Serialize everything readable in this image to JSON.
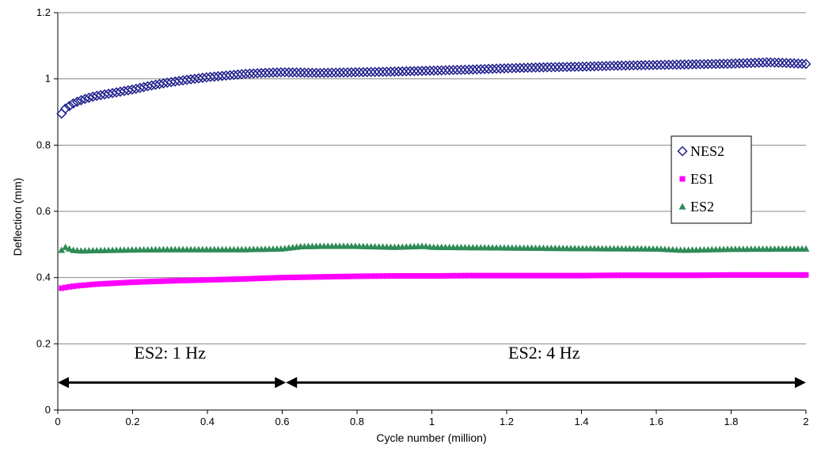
{
  "chart_data": {
    "type": "scatter",
    "xlabel": "Cycle number (million)",
    "ylabel": "Deflection (mm)",
    "xlim": [
      0,
      2
    ],
    "ylim": [
      0,
      1.2
    ],
    "x_ticks": [
      "0",
      "0.2",
      "0.4",
      "0.6",
      "0.8",
      "1",
      "1.2",
      "1.4",
      "1.6",
      "1.8",
      "2"
    ],
    "y_ticks": [
      "0",
      "0.2",
      "0.4",
      "0.6",
      "0.8",
      "1",
      "1.2"
    ],
    "grid": "horizontal",
    "legend_position": "right",
    "series": [
      {
        "name": "NES2",
        "marker": "diamond-open",
        "color": "#1F1F8C",
        "x": [
          0.01,
          0.02,
          0.04,
          0.06,
          0.08,
          0.1,
          0.15,
          0.2,
          0.25,
          0.3,
          0.35,
          0.4,
          0.45,
          0.5,
          0.55,
          0.6,
          0.7,
          0.8,
          0.9,
          1.0,
          1.1,
          1.2,
          1.3,
          1.4,
          1.5,
          1.6,
          1.7,
          1.8,
          1.9,
          1.95,
          2.0
        ],
        "y": [
          0.895,
          0.91,
          0.925,
          0.935,
          0.942,
          0.948,
          0.958,
          0.968,
          0.98,
          0.99,
          0.998,
          1.005,
          1.01,
          1.015,
          1.018,
          1.02,
          1.018,
          1.02,
          1.022,
          1.025,
          1.028,
          1.032,
          1.035,
          1.037,
          1.04,
          1.042,
          1.044,
          1.046,
          1.05,
          1.048,
          1.045
        ]
      },
      {
        "name": "ES1",
        "marker": "square",
        "color": "#FF00FF",
        "x": [
          0.01,
          0.03,
          0.05,
          0.1,
          0.15,
          0.2,
          0.3,
          0.4,
          0.5,
          0.6,
          0.7,
          0.8,
          0.9,
          1.0,
          1.1,
          1.2,
          1.3,
          1.4,
          1.5,
          1.6,
          1.7,
          1.8,
          1.9,
          2.0
        ],
        "y": [
          0.368,
          0.372,
          0.375,
          0.38,
          0.383,
          0.386,
          0.39,
          0.393,
          0.396,
          0.4,
          0.402,
          0.404,
          0.405,
          0.405,
          0.406,
          0.406,
          0.406,
          0.406,
          0.407,
          0.407,
          0.407,
          0.408,
          0.408,
          0.408
        ]
      },
      {
        "name": "ES2",
        "marker": "triangle",
        "color": "#2E8B57",
        "x": [
          0.01,
          0.02,
          0.04,
          0.06,
          0.1,
          0.2,
          0.3,
          0.4,
          0.5,
          0.6,
          0.62,
          0.65,
          0.7,
          0.8,
          0.9,
          0.98,
          1.0,
          1.2,
          1.4,
          1.6,
          1.67,
          1.8,
          2.0
        ],
        "y": [
          0.483,
          0.492,
          0.483,
          0.481,
          0.482,
          0.484,
          0.485,
          0.485,
          0.485,
          0.487,
          0.49,
          0.494,
          0.495,
          0.495,
          0.492,
          0.495,
          0.492,
          0.49,
          0.488,
          0.487,
          0.483,
          0.486,
          0.487
        ]
      }
    ],
    "annotations": [
      {
        "text": "ES2: 1 Hz",
        "x": 0.3,
        "y": 0.155
      },
      {
        "text": "ES2: 4 Hz",
        "x": 1.3,
        "y": 0.155
      }
    ],
    "arrows": [
      {
        "x1": 0.0,
        "x2": 0.61,
        "y": 0.083
      },
      {
        "x1": 0.61,
        "x2": 2.0,
        "y": 0.083
      }
    ]
  }
}
